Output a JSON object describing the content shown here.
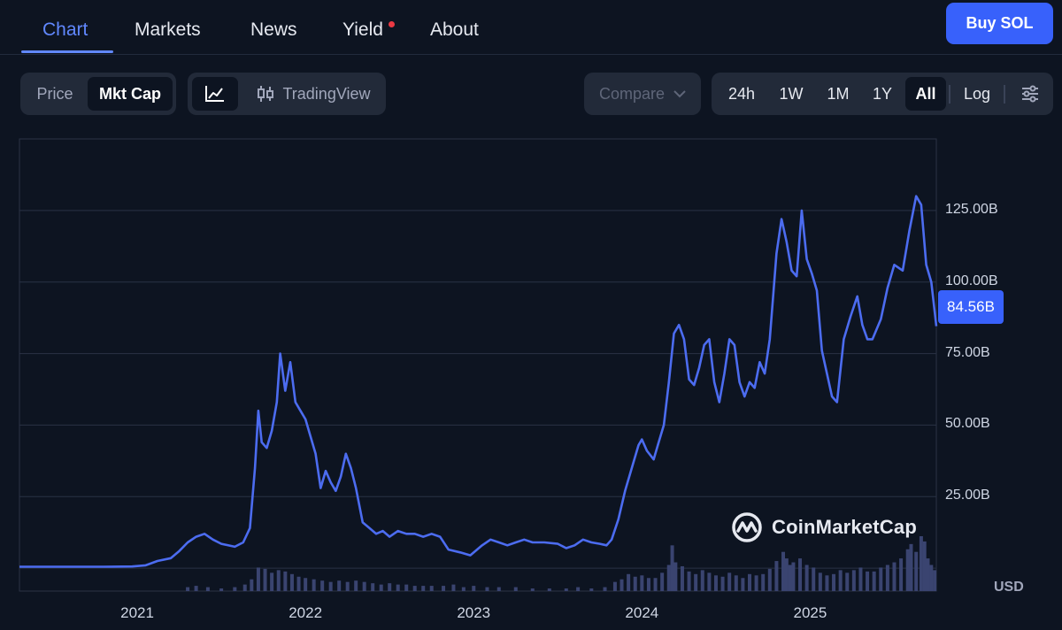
{
  "nav": {
    "tabs": [
      {
        "label": "Chart",
        "active": true
      },
      {
        "label": "Markets"
      },
      {
        "label": "News"
      },
      {
        "label": "Yield",
        "badge_dot": true
      },
      {
        "label": "About"
      }
    ],
    "buy_label": "Buy SOL",
    "accent": "#6188ff",
    "buy_color": "#3861fb",
    "dot_color": "#ea3943"
  },
  "controls": {
    "metric_toggle": [
      {
        "label": "Price"
      },
      {
        "label": "Mkt Cap",
        "selected": true
      }
    ],
    "chart_style": {
      "line_icon": "line-chart-icon",
      "candles_icon": "candlestick-icon",
      "tradingview_label": "TradingView"
    },
    "compare_label": "Compare",
    "ranges": [
      {
        "label": "24h"
      },
      {
        "label": "1W"
      },
      {
        "label": "1M"
      },
      {
        "label": "1Y"
      },
      {
        "label": "All",
        "selected": true
      }
    ],
    "log_label": "Log",
    "settings_icon": "sliders-icon"
  },
  "watermark": "CoinMarketCap",
  "chart_data": {
    "type": "line",
    "y_unit": "USD",
    "line_color": "#4c6cf0",
    "ylim": [
      -8,
      150
    ],
    "y_ticks": [
      {
        "value": 25,
        "label": "25.00B"
      },
      {
        "value": 50,
        "label": "50.00B"
      },
      {
        "value": 75,
        "label": "75.00B"
      },
      {
        "value": 100,
        "label": "100.00B"
      },
      {
        "value": 125,
        "label": "125.00B"
      }
    ],
    "x_ticks": [
      {
        "value": 2021.0,
        "label": "2021"
      },
      {
        "value": 2022.0,
        "label": "2022"
      },
      {
        "value": 2023.0,
        "label": "2023"
      },
      {
        "value": 2024.0,
        "label": "2024"
      },
      {
        "value": 2025.0,
        "label": "2025"
      }
    ],
    "last_value_label": "84.56B",
    "grid": true,
    "series": [
      {
        "values_unit": "billion USD",
        "points": [
          [
            2020.3,
            0.5
          ],
          [
            2020.6,
            0.5
          ],
          [
            2020.8,
            0.5
          ],
          [
            2020.97,
            0.6
          ],
          [
            2021.05,
            1
          ],
          [
            2021.12,
            2.5
          ],
          [
            2021.2,
            3.5
          ],
          [
            2021.25,
            6
          ],
          [
            2021.3,
            9
          ],
          [
            2021.35,
            11
          ],
          [
            2021.4,
            12
          ],
          [
            2021.45,
            10
          ],
          [
            2021.5,
            8.5
          ],
          [
            2021.58,
            7.5
          ],
          [
            2021.63,
            9
          ],
          [
            2021.67,
            14
          ],
          [
            2021.7,
            35
          ],
          [
            2021.72,
            55
          ],
          [
            2021.74,
            44
          ],
          [
            2021.77,
            42
          ],
          [
            2021.8,
            48
          ],
          [
            2021.83,
            58
          ],
          [
            2021.85,
            75
          ],
          [
            2021.88,
            62
          ],
          [
            2021.91,
            72
          ],
          [
            2021.94,
            58
          ],
          [
            2021.97,
            55
          ],
          [
            2022.0,
            52
          ],
          [
            2022.03,
            46
          ],
          [
            2022.06,
            40
          ],
          [
            2022.09,
            28
          ],
          [
            2022.12,
            34
          ],
          [
            2022.15,
            30
          ],
          [
            2022.18,
            27
          ],
          [
            2022.21,
            32
          ],
          [
            2022.24,
            40
          ],
          [
            2022.27,
            35
          ],
          [
            2022.3,
            28
          ],
          [
            2022.34,
            16
          ],
          [
            2022.38,
            14
          ],
          [
            2022.42,
            12
          ],
          [
            2022.46,
            13
          ],
          [
            2022.5,
            11
          ],
          [
            2022.55,
            13
          ],
          [
            2022.6,
            12
          ],
          [
            2022.65,
            12
          ],
          [
            2022.7,
            11
          ],
          [
            2022.75,
            12
          ],
          [
            2022.8,
            11
          ],
          [
            2022.85,
            6.5
          ],
          [
            2022.92,
            5.5
          ],
          [
            2022.98,
            4.5
          ],
          [
            2023.05,
            8
          ],
          [
            2023.1,
            10
          ],
          [
            2023.15,
            9
          ],
          [
            2023.2,
            8
          ],
          [
            2023.25,
            9
          ],
          [
            2023.3,
            10
          ],
          [
            2023.35,
            9
          ],
          [
            2023.42,
            9
          ],
          [
            2023.5,
            8.5
          ],
          [
            2023.55,
            7
          ],
          [
            2023.6,
            8
          ],
          [
            2023.65,
            10
          ],
          [
            2023.7,
            9
          ],
          [
            2023.75,
            8.5
          ],
          [
            2023.79,
            8
          ],
          [
            2023.82,
            10
          ],
          [
            2023.86,
            17
          ],
          [
            2023.9,
            27
          ],
          [
            2023.94,
            35
          ],
          [
            2023.98,
            43
          ],
          [
            2024.0,
            45
          ],
          [
            2024.03,
            41
          ],
          [
            2024.07,
            38
          ],
          [
            2024.1,
            44
          ],
          [
            2024.13,
            50
          ],
          [
            2024.16,
            65
          ],
          [
            2024.19,
            82
          ],
          [
            2024.22,
            85
          ],
          [
            2024.25,
            80
          ],
          [
            2024.28,
            66
          ],
          [
            2024.31,
            64
          ],
          [
            2024.34,
            70
          ],
          [
            2024.37,
            78
          ],
          [
            2024.4,
            80
          ],
          [
            2024.43,
            65
          ],
          [
            2024.46,
            58
          ],
          [
            2024.49,
            68
          ],
          [
            2024.52,
            80
          ],
          [
            2024.55,
            78
          ],
          [
            2024.58,
            65
          ],
          [
            2024.61,
            60
          ],
          [
            2024.64,
            65
          ],
          [
            2024.67,
            63
          ],
          [
            2024.7,
            72
          ],
          [
            2024.73,
            68
          ],
          [
            2024.76,
            80
          ],
          [
            2024.8,
            110
          ],
          [
            2024.83,
            122
          ],
          [
            2024.86,
            114
          ],
          [
            2024.89,
            104
          ],
          [
            2024.92,
            102
          ],
          [
            2024.95,
            125
          ],
          [
            2024.98,
            108
          ],
          [
            2025.01,
            103
          ],
          [
            2025.04,
            97
          ],
          [
            2025.07,
            76
          ],
          [
            2025.1,
            68
          ],
          [
            2025.13,
            60
          ],
          [
            2025.16,
            58
          ],
          [
            2025.2,
            80
          ],
          [
            2025.24,
            88
          ],
          [
            2025.28,
            95
          ],
          [
            2025.31,
            85
          ],
          [
            2025.34,
            80
          ],
          [
            2025.37,
            80
          ],
          [
            2025.42,
            87
          ],
          [
            2025.46,
            98
          ],
          [
            2025.5,
            106
          ],
          [
            2025.55,
            104
          ],
          [
            2025.59,
            118
          ],
          [
            2025.63,
            130
          ],
          [
            2025.66,
            127
          ],
          [
            2025.69,
            106
          ],
          [
            2025.72,
            100
          ],
          [
            2025.75,
            84.56
          ]
        ]
      }
    ],
    "volume": {
      "unit": "relative",
      "bars": [
        [
          2021.3,
          3
        ],
        [
          2021.35,
          4
        ],
        [
          2021.42,
          3
        ],
        [
          2021.5,
          2
        ],
        [
          2021.58,
          3
        ],
        [
          2021.64,
          5
        ],
        [
          2021.68,
          9
        ],
        [
          2021.72,
          18
        ],
        [
          2021.76,
          17
        ],
        [
          2021.8,
          14
        ],
        [
          2021.84,
          16
        ],
        [
          2021.88,
          15
        ],
        [
          2021.92,
          13
        ],
        [
          2021.96,
          11
        ],
        [
          2022.0,
          10
        ],
        [
          2022.05,
          9
        ],
        [
          2022.1,
          8
        ],
        [
          2022.15,
          7
        ],
        [
          2022.2,
          8
        ],
        [
          2022.25,
          7
        ],
        [
          2022.3,
          8
        ],
        [
          2022.35,
          7
        ],
        [
          2022.4,
          6
        ],
        [
          2022.45,
          5
        ],
        [
          2022.5,
          6
        ],
        [
          2022.55,
          5
        ],
        [
          2022.6,
          5
        ],
        [
          2022.65,
          4
        ],
        [
          2022.7,
          4
        ],
        [
          2022.75,
          4
        ],
        [
          2022.82,
          4
        ],
        [
          2022.88,
          5
        ],
        [
          2022.94,
          3
        ],
        [
          2023.0,
          4
        ],
        [
          2023.08,
          3
        ],
        [
          2023.15,
          3
        ],
        [
          2023.25,
          3
        ],
        [
          2023.35,
          2
        ],
        [
          2023.45,
          2
        ],
        [
          2023.55,
          2
        ],
        [
          2023.62,
          3
        ],
        [
          2023.7,
          2
        ],
        [
          2023.78,
          3
        ],
        [
          2023.84,
          7
        ],
        [
          2023.88,
          9
        ],
        [
          2023.92,
          13
        ],
        [
          2023.96,
          11
        ],
        [
          2024.0,
          12
        ],
        [
          2024.04,
          10
        ],
        [
          2024.08,
          10
        ],
        [
          2024.12,
          14
        ],
        [
          2024.16,
          20
        ],
        [
          2024.18,
          35
        ],
        [
          2024.2,
          22
        ],
        [
          2024.24,
          19
        ],
        [
          2024.28,
          15
        ],
        [
          2024.32,
          13
        ],
        [
          2024.36,
          16
        ],
        [
          2024.4,
          14
        ],
        [
          2024.44,
          12
        ],
        [
          2024.48,
          11
        ],
        [
          2024.52,
          14
        ],
        [
          2024.56,
          12
        ],
        [
          2024.6,
          10
        ],
        [
          2024.64,
          13
        ],
        [
          2024.68,
          12
        ],
        [
          2024.72,
          13
        ],
        [
          2024.76,
          17
        ],
        [
          2024.8,
          23
        ],
        [
          2024.84,
          30
        ],
        [
          2024.86,
          25
        ],
        [
          2024.88,
          20
        ],
        [
          2024.9,
          22
        ],
        [
          2024.94,
          25
        ],
        [
          2024.98,
          20
        ],
        [
          2025.02,
          18
        ],
        [
          2025.06,
          14
        ],
        [
          2025.1,
          12
        ],
        [
          2025.14,
          13
        ],
        [
          2025.18,
          16
        ],
        [
          2025.22,
          14
        ],
        [
          2025.26,
          16
        ],
        [
          2025.3,
          18
        ],
        [
          2025.34,
          15
        ],
        [
          2025.38,
          15
        ],
        [
          2025.42,
          18
        ],
        [
          2025.46,
          20
        ],
        [
          2025.5,
          22
        ],
        [
          2025.54,
          25
        ],
        [
          2025.58,
          32
        ],
        [
          2025.6,
          36
        ],
        [
          2025.63,
          30
        ],
        [
          2025.66,
          42
        ],
        [
          2025.68,
          38
        ],
        [
          2025.7,
          25
        ],
        [
          2025.72,
          20
        ],
        [
          2025.74,
          16
        ]
      ]
    }
  }
}
